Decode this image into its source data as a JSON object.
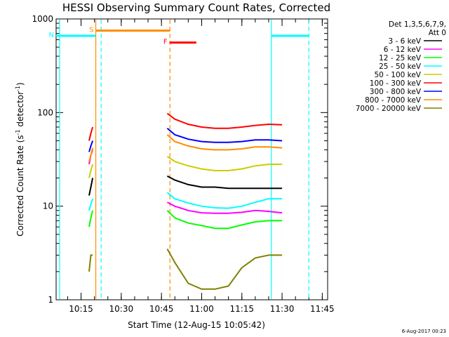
{
  "chart_data": {
    "type": "line",
    "title": "HESSI Observing Summary Count Rates, Corrected",
    "xlabel": "Start Time (12-Aug-15 10:05:42)",
    "ylabel_main": "Corrected Count Rate (s",
    "ylabel_sup1": "-1",
    "ylabel_mid": " detector",
    "ylabel_sup2": "-1",
    "ylabel_end": ")",
    "y_scale": "log",
    "ylim": [
      1,
      1000
    ],
    "xlim": [
      "10:05:42",
      "11:47:00"
    ],
    "x_ticks": [
      "10:15",
      "10:30",
      "10:45",
      "11:00",
      "11:15",
      "11:30",
      "11:45"
    ],
    "y_ticks": [
      "1",
      "10",
      "100",
      "1000"
    ],
    "legend_header": [
      "Det 1,3,5,6,7,9,",
      "Att 0"
    ],
    "legend_position": "right",
    "stamp": "6-Aug-2017 00:23",
    "series": [
      {
        "name": "3 - 6 keV",
        "color": "#000000",
        "x": [
          "10:18:00",
          "10:18:40",
          "10:19:20",
          "10:47:10",
          "10:50",
          "10:55",
          "11:00",
          "11:05",
          "11:10",
          "11:15",
          "11:20",
          "11:25",
          "11:30"
        ],
        "y": [
          13,
          16,
          20,
          21,
          19,
          17,
          16,
          16,
          15.5,
          15.5,
          15.5,
          15.5,
          15.5
        ]
      },
      {
        "name": "6 - 12 keV",
        "color": "#ff00ff",
        "x": [
          "10:18:00",
          "10:18:40",
          "10:19:20",
          "10:47:10",
          "10:50",
          "10:55",
          "11:00",
          "11:05",
          "11:10",
          "11:15",
          "11:20",
          "11:25",
          "11:30"
        ],
        "y": [
          28,
          35,
          40,
          11,
          10,
          9,
          8.5,
          8.4,
          8.4,
          8.6,
          9,
          8.8,
          8.5
        ]
      },
      {
        "name": "12 - 25 keV",
        "color": "#00ff00",
        "x": [
          "10:18:00",
          "10:18:40",
          "10:19:20",
          "10:47:10",
          "10:50",
          "10:55",
          "11:00",
          "11:05",
          "11:10",
          "11:15",
          "11:20",
          "11:25",
          "11:30"
        ],
        "y": [
          6,
          7.5,
          9,
          9,
          7.5,
          6.6,
          6.2,
          5.8,
          5.8,
          6.3,
          6.8,
          7,
          7
        ]
      },
      {
        "name": "25 - 50 keV",
        "color": "#00ffff",
        "x": [
          "10:18:00",
          "10:18:40",
          "10:19:20",
          "10:47:10",
          "10:50",
          "10:55",
          "11:00",
          "11:05",
          "11:10",
          "11:15",
          "11:20",
          "11:25",
          "11:30"
        ],
        "y": [
          9,
          10.5,
          12,
          14,
          12,
          10.8,
          10,
          9.6,
          9.5,
          10,
          11,
          12,
          12
        ]
      },
      {
        "name": "50 - 100 keV",
        "color": "#cccc00",
        "x": [
          "10:18:00",
          "10:18:40",
          "10:19:20",
          "10:47:10",
          "10:50",
          "10:55",
          "11:00",
          "11:05",
          "11:10",
          "11:15",
          "11:20",
          "11:25",
          "11:30"
        ],
        "y": [
          20,
          24,
          28,
          34,
          30,
          27,
          25,
          24,
          24,
          25,
          27,
          28,
          28
        ]
      },
      {
        "name": "100 - 300 keV",
        "color": "#ff0000",
        "x": [
          "10:18:00",
          "10:18:40",
          "10:19:20",
          "10:47:10",
          "10:50",
          "10:55",
          "11:00",
          "11:05",
          "11:10",
          "11:15",
          "11:20",
          "11:25",
          "11:30"
        ],
        "y": [
          50,
          60,
          70,
          98,
          85,
          75,
          70,
          68,
          68,
          70,
          73,
          75,
          74
        ]
      },
      {
        "name": "300 - 800 keV",
        "color": "#0000ff",
        "x": [
          "10:18:00",
          "10:18:40",
          "10:19:20",
          "10:47:10",
          "10:50",
          "10:55",
          "11:00",
          "11:05",
          "11:10",
          "11:15",
          "11:20",
          "11:25",
          "11:30"
        ],
        "y": [
          38,
          44,
          50,
          68,
          58,
          52,
          49,
          48,
          48,
          49,
          51,
          51,
          50
        ]
      },
      {
        "name": "800 - 7000 keV",
        "color": "#ff8c00",
        "x": [
          "10:18:00",
          "10:18:40",
          "10:19:20",
          "10:47:10",
          "10:50",
          "10:55",
          "11:00",
          "11:05",
          "11:10",
          "11:15",
          "11:20",
          "11:25",
          "11:30"
        ],
        "y": [
          30,
          35,
          42,
          58,
          49,
          44,
          41,
          40,
          40,
          41,
          43,
          43,
          42
        ]
      },
      {
        "name": "7000 - 20000 keV",
        "color": "#808000",
        "x": [
          "10:18:00",
          "10:18:40",
          "10:19:20",
          "10:47:10",
          "10:50",
          "10:55",
          "11:00",
          "11:05",
          "11:10",
          "11:15",
          "11:20",
          "11:25",
          "11:30"
        ],
        "y": [
          2,
          3,
          3,
          3.5,
          2.5,
          1.5,
          1.3,
          1.3,
          1.4,
          2.2,
          2.8,
          3,
          3
        ]
      }
    ],
    "flags": [
      {
        "label": "S",
        "color": "#ff8c00",
        "x": [
          "10:20:30",
          "10:48:10"
        ],
        "y_level": 750
      },
      {
        "label": "F",
        "color": "#ff0000",
        "x": [
          "10:48:00",
          "10:58:00"
        ],
        "y_level": 560
      },
      {
        "label": "N",
        "color": "#00ffff",
        "x": [
          "10:05:42",
          "10:20:30"
        ],
        "y_level": 660
      },
      {
        "label": "",
        "color": "#00ffff",
        "x": [
          "11:26:00",
          "11:40:00"
        ],
        "y_level": 660
      }
    ],
    "vlines": [
      {
        "x": "10:07:00",
        "color": "#00ffff",
        "style": "solid"
      },
      {
        "x": "10:20:30",
        "color": "#ff8c00",
        "style": "solid"
      },
      {
        "x": "10:22:30",
        "color": "#00ffff",
        "style": "dashed"
      },
      {
        "x": "10:48:10",
        "color": "#ff8c00",
        "style": "dashed"
      },
      {
        "x": "11:26:00",
        "color": "#00ffff",
        "style": "solid"
      },
      {
        "x": "11:40:00",
        "color": "#00ffff",
        "style": "dashed"
      }
    ]
  }
}
